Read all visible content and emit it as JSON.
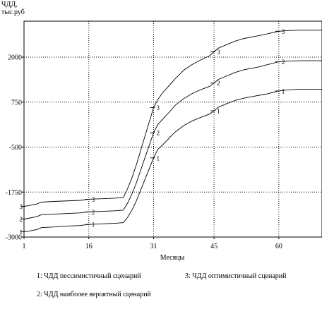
{
  "chart_data": {
    "type": "line",
    "ylabel": [
      "ЧДД,",
      "тыс.руб"
    ],
    "xlabel": "Месяцы",
    "x_ticks": [
      1,
      16,
      31,
      45,
      60
    ],
    "y_ticks": [
      -3000,
      -1750,
      -500,
      750,
      2000
    ],
    "xlim": [
      1,
      70
    ],
    "ylim": [
      -3000,
      3000
    ],
    "grid": true,
    "series": [
      {
        "marker": "1",
        "x": [
          1,
          2,
          4,
          5,
          8,
          10,
          12,
          14,
          16,
          18,
          20,
          22,
          24,
          25,
          26,
          27,
          28,
          29,
          30,
          31,
          32,
          33,
          34,
          35,
          36,
          38,
          40,
          42,
          44,
          45,
          46,
          48,
          50,
          52,
          55,
          57,
          60,
          62,
          65,
          70
        ],
        "y": [
          -2850,
          -2840,
          -2790,
          -2740,
          -2720,
          -2700,
          -2690,
          -2680,
          -2650,
          -2640,
          -2630,
          -2620,
          -2600,
          -2450,
          -2250,
          -2000,
          -1700,
          -1400,
          -1100,
          -800,
          -560,
          -450,
          -330,
          -200,
          -80,
          100,
          230,
          330,
          420,
          510,
          610,
          710,
          800,
          860,
          930,
          970,
          1060,
          1090,
          1110,
          1110
        ],
        "marker_x": [
          1,
          16,
          31,
          45,
          60
        ]
      },
      {
        "marker": "2",
        "x": [
          1,
          2,
          4,
          5,
          8,
          10,
          12,
          14,
          16,
          18,
          20,
          22,
          24,
          25,
          26,
          27,
          28,
          29,
          30,
          31,
          32,
          33,
          34,
          35,
          36,
          38,
          40,
          42,
          44,
          45,
          46,
          48,
          50,
          52,
          55,
          57,
          60,
          62,
          65,
          70
        ],
        "y": [
          -2500,
          -2480,
          -2430,
          -2380,
          -2360,
          -2350,
          -2340,
          -2330,
          -2300,
          -2290,
          -2280,
          -2270,
          -2250,
          -2050,
          -1800,
          -1500,
          -1150,
          -800,
          -450,
          -100,
          130,
          260,
          390,
          520,
          660,
          850,
          990,
          1100,
          1190,
          1280,
          1380,
          1480,
          1580,
          1650,
          1720,
          1780,
          1870,
          1890,
          1900,
          1900
        ],
        "marker_x": [
          1,
          16,
          31,
          45,
          60
        ]
      },
      {
        "marker": "3",
        "x": [
          1,
          2,
          4,
          5,
          8,
          10,
          12,
          14,
          16,
          18,
          20,
          22,
          24,
          25,
          26,
          27,
          28,
          29,
          30,
          31,
          32,
          33,
          34,
          35,
          36,
          38,
          40,
          42,
          44,
          45,
          46,
          48,
          50,
          52,
          55,
          57,
          60,
          62,
          65,
          70
        ],
        "y": [
          -2150,
          -2130,
          -2080,
          -2030,
          -2010,
          -2000,
          -1990,
          -1980,
          -1950,
          -1940,
          -1930,
          -1920,
          -1900,
          -1650,
          -1350,
          -1000,
          -600,
          -200,
          200,
          600,
          820,
          1000,
          1130,
          1260,
          1400,
          1640,
          1800,
          1930,
          2040,
          2150,
          2250,
          2350,
          2450,
          2520,
          2590,
          2640,
          2720,
          2740,
          2750,
          2750
        ],
        "marker_x": [
          1,
          16,
          31,
          45,
          60
        ]
      }
    ],
    "legend": [
      {
        "text": "1: ЧДД пессимистичный сценарий"
      },
      {
        "text": "3: ЧДД оптимистичный сценарий"
      },
      {
        "text": "2: ЧДД наиболее вероятный сценарий"
      }
    ]
  }
}
